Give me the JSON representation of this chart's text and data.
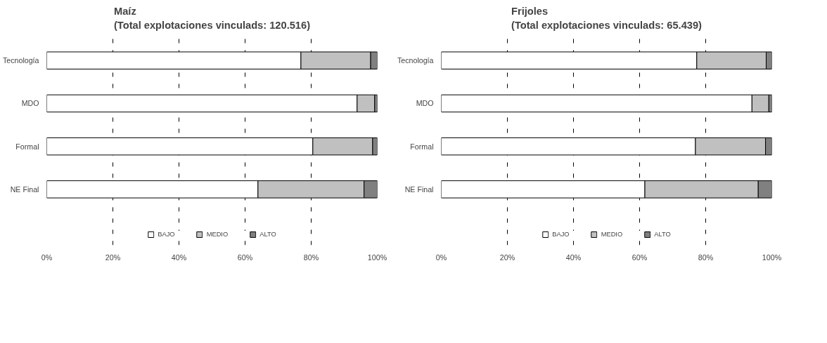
{
  "chart_data": [
    {
      "type": "bar",
      "orientation": "horizontal",
      "stacked": true,
      "title": "Maíz\n(Total explotaciones vinculads: 120.516)",
      "categories": [
        "Tecnología",
        "MDO",
        "Formal",
        "NE Final"
      ],
      "series": [
        {
          "name": "BAJO",
          "color": "#ffffff",
          "values": [
            76.9,
            93.9,
            80.5,
            63.9
          ]
        },
        {
          "name": "MEDIO",
          "color": "#c0c0c0",
          "values": [
            21.1,
            5.3,
            18.1,
            32.1
          ]
        },
        {
          "name": "ALTO",
          "color": "#808080",
          "values": [
            2.0,
            0.8,
            1.4,
            4.0
          ]
        }
      ],
      "xlim": [
        0,
        100
      ],
      "xticks": [
        {
          "value": 0,
          "label": "0%"
        },
        {
          "value": 20,
          "label": "20%"
        },
        {
          "value": 40,
          "label": "40%"
        },
        {
          "value": 60,
          "label": "60%"
        },
        {
          "value": 80,
          "label": "80%"
        },
        {
          "value": 100,
          "label": "100%"
        }
      ],
      "grid": "x",
      "legend": "bottom"
    },
    {
      "type": "bar",
      "orientation": "horizontal",
      "stacked": true,
      "title": "Frijoles\n(Total explotaciones vinculads: 65.439)",
      "categories": [
        "Tecnología",
        "MDO",
        "Formal",
        "NE Final"
      ],
      "series": [
        {
          "name": "BAJO",
          "color": "#ffffff",
          "values": [
            77.3,
            94.0,
            76.9,
            61.6
          ]
        },
        {
          "name": "MEDIO",
          "color": "#c0c0c0",
          "values": [
            21.0,
            5.1,
            21.2,
            34.3
          ]
        },
        {
          "name": "ALTO",
          "color": "#808080",
          "values": [
            1.7,
            0.9,
            1.9,
            4.1
          ]
        }
      ],
      "xlim": [
        0,
        100
      ],
      "xticks": [
        {
          "value": 0,
          "label": "0%"
        },
        {
          "value": 20,
          "label": "20%"
        },
        {
          "value": 40,
          "label": "40%"
        },
        {
          "value": 60,
          "label": "60%"
        },
        {
          "value": 80,
          "label": "80%"
        },
        {
          "value": 100,
          "label": "100%"
        }
      ],
      "grid": "x",
      "legend": "bottom"
    }
  ]
}
